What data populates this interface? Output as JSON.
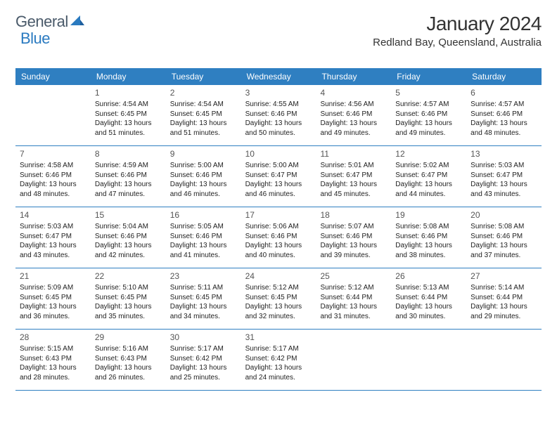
{
  "logo": {
    "text_general": "General",
    "text_blue": "Blue",
    "triangle_color": "#2a7ac0"
  },
  "header": {
    "month_title": "January 2024",
    "location": "Redland Bay, Queensland, Australia"
  },
  "colors": {
    "header_bg": "#2f7fc1",
    "header_text": "#ffffff",
    "border": "#2f7fc1"
  },
  "day_names": [
    "Sunday",
    "Monday",
    "Tuesday",
    "Wednesday",
    "Thursday",
    "Friday",
    "Saturday"
  ],
  "weeks": [
    [
      {
        "n": "",
        "sr": "",
        "ss": "",
        "dl": ""
      },
      {
        "n": "1",
        "sr": "4:54 AM",
        "ss": "6:45 PM",
        "dl": "13 hours and 51 minutes."
      },
      {
        "n": "2",
        "sr": "4:54 AM",
        "ss": "6:45 PM",
        "dl": "13 hours and 51 minutes."
      },
      {
        "n": "3",
        "sr": "4:55 AM",
        "ss": "6:46 PM",
        "dl": "13 hours and 50 minutes."
      },
      {
        "n": "4",
        "sr": "4:56 AM",
        "ss": "6:46 PM",
        "dl": "13 hours and 49 minutes."
      },
      {
        "n": "5",
        "sr": "4:57 AM",
        "ss": "6:46 PM",
        "dl": "13 hours and 49 minutes."
      },
      {
        "n": "6",
        "sr": "4:57 AM",
        "ss": "6:46 PM",
        "dl": "13 hours and 48 minutes."
      }
    ],
    [
      {
        "n": "7",
        "sr": "4:58 AM",
        "ss": "6:46 PM",
        "dl": "13 hours and 48 minutes."
      },
      {
        "n": "8",
        "sr": "4:59 AM",
        "ss": "6:46 PM",
        "dl": "13 hours and 47 minutes."
      },
      {
        "n": "9",
        "sr": "5:00 AM",
        "ss": "6:46 PM",
        "dl": "13 hours and 46 minutes."
      },
      {
        "n": "10",
        "sr": "5:00 AM",
        "ss": "6:47 PM",
        "dl": "13 hours and 46 minutes."
      },
      {
        "n": "11",
        "sr": "5:01 AM",
        "ss": "6:47 PM",
        "dl": "13 hours and 45 minutes."
      },
      {
        "n": "12",
        "sr": "5:02 AM",
        "ss": "6:47 PM",
        "dl": "13 hours and 44 minutes."
      },
      {
        "n": "13",
        "sr": "5:03 AM",
        "ss": "6:47 PM",
        "dl": "13 hours and 43 minutes."
      }
    ],
    [
      {
        "n": "14",
        "sr": "5:03 AM",
        "ss": "6:47 PM",
        "dl": "13 hours and 43 minutes."
      },
      {
        "n": "15",
        "sr": "5:04 AM",
        "ss": "6:46 PM",
        "dl": "13 hours and 42 minutes."
      },
      {
        "n": "16",
        "sr": "5:05 AM",
        "ss": "6:46 PM",
        "dl": "13 hours and 41 minutes."
      },
      {
        "n": "17",
        "sr": "5:06 AM",
        "ss": "6:46 PM",
        "dl": "13 hours and 40 minutes."
      },
      {
        "n": "18",
        "sr": "5:07 AM",
        "ss": "6:46 PM",
        "dl": "13 hours and 39 minutes."
      },
      {
        "n": "19",
        "sr": "5:08 AM",
        "ss": "6:46 PM",
        "dl": "13 hours and 38 minutes."
      },
      {
        "n": "20",
        "sr": "5:08 AM",
        "ss": "6:46 PM",
        "dl": "13 hours and 37 minutes."
      }
    ],
    [
      {
        "n": "21",
        "sr": "5:09 AM",
        "ss": "6:45 PM",
        "dl": "13 hours and 36 minutes."
      },
      {
        "n": "22",
        "sr": "5:10 AM",
        "ss": "6:45 PM",
        "dl": "13 hours and 35 minutes."
      },
      {
        "n": "23",
        "sr": "5:11 AM",
        "ss": "6:45 PM",
        "dl": "13 hours and 34 minutes."
      },
      {
        "n": "24",
        "sr": "5:12 AM",
        "ss": "6:45 PM",
        "dl": "13 hours and 32 minutes."
      },
      {
        "n": "25",
        "sr": "5:12 AM",
        "ss": "6:44 PM",
        "dl": "13 hours and 31 minutes."
      },
      {
        "n": "26",
        "sr": "5:13 AM",
        "ss": "6:44 PM",
        "dl": "13 hours and 30 minutes."
      },
      {
        "n": "27",
        "sr": "5:14 AM",
        "ss": "6:44 PM",
        "dl": "13 hours and 29 minutes."
      }
    ],
    [
      {
        "n": "28",
        "sr": "5:15 AM",
        "ss": "6:43 PM",
        "dl": "13 hours and 28 minutes."
      },
      {
        "n": "29",
        "sr": "5:16 AM",
        "ss": "6:43 PM",
        "dl": "13 hours and 26 minutes."
      },
      {
        "n": "30",
        "sr": "5:17 AM",
        "ss": "6:42 PM",
        "dl": "13 hours and 25 minutes."
      },
      {
        "n": "31",
        "sr": "5:17 AM",
        "ss": "6:42 PM",
        "dl": "13 hours and 24 minutes."
      },
      {
        "n": "",
        "sr": "",
        "ss": "",
        "dl": ""
      },
      {
        "n": "",
        "sr": "",
        "ss": "",
        "dl": ""
      },
      {
        "n": "",
        "sr": "",
        "ss": "",
        "dl": ""
      }
    ]
  ],
  "labels": {
    "sunrise": "Sunrise:",
    "sunset": "Sunset:",
    "daylight": "Daylight:"
  }
}
